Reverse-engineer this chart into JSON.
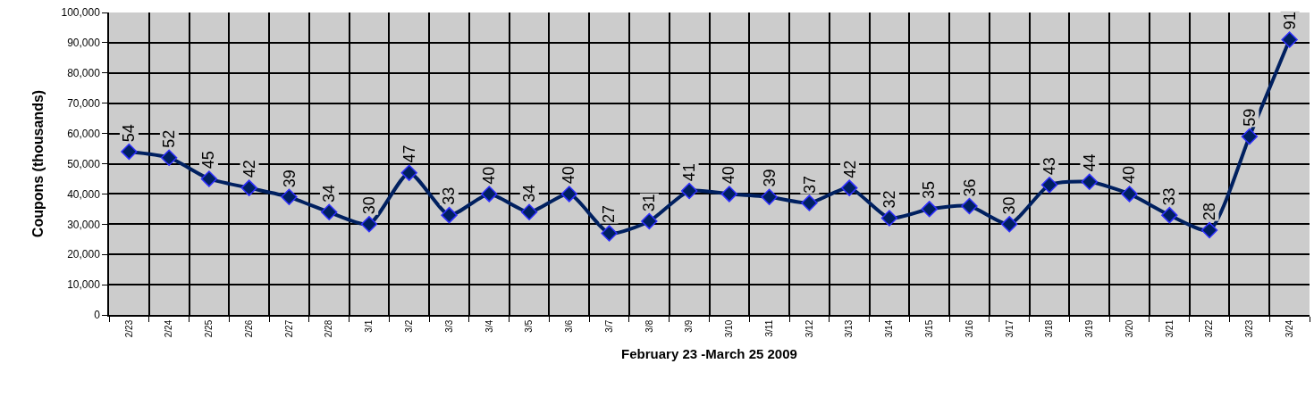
{
  "chart_data": {
    "type": "line",
    "xlabel": "February 23 -March 25 2009",
    "ylabel": "Coupons (thousands)",
    "categories": [
      "2/23",
      "2/24",
      "2/25",
      "2/26",
      "2/27",
      "2/28",
      "3/1",
      "3/2",
      "3/3",
      "3/4",
      "3/5",
      "3/6",
      "3/7",
      "3/8",
      "3/9",
      "3/10",
      "3/11",
      "3/12",
      "3/13",
      "3/14",
      "3/15",
      "3/16",
      "3/17",
      "3/18",
      "3/19",
      "3/20",
      "3/21",
      "3/22",
      "3/23",
      "3/24"
    ],
    "series": [
      {
        "color": "#002060",
        "values": [
          54000,
          52000,
          45000,
          42000,
          39000,
          34000,
          30000,
          47000,
          33000,
          40000,
          34000,
          40000,
          27000,
          31000,
          41000,
          40000,
          39000,
          37000,
          42000,
          32000,
          35000,
          36000,
          30000,
          43000,
          44000,
          40000,
          33000,
          28000,
          59000,
          91000
        ]
      }
    ],
    "annotations": [
      {
        "text": "54",
        "x": "2/23",
        "y": 54000
      },
      {
        "text": "52",
        "x": "2/24",
        "y": 52000
      },
      {
        "text": "45",
        "x": "2/25",
        "y": 45000
      },
      {
        "text": "42",
        "x": "2/26",
        "y": 42000
      },
      {
        "text": "39",
        "x": "2/27",
        "y": 39000
      },
      {
        "text": "34",
        "x": "2/28",
        "y": 34000
      },
      {
        "text": "30",
        "x": "3/1",
        "y": 30000
      },
      {
        "text": "47",
        "x": "3/2",
        "y": 47000
      },
      {
        "text": "33",
        "x": "3/3",
        "y": 33000
      },
      {
        "text": "40",
        "x": "3/4",
        "y": 40000
      },
      {
        "text": "34",
        "x": "3/5",
        "y": 34000
      },
      {
        "text": "40",
        "x": "3/6",
        "y": 40000
      },
      {
        "text": "27",
        "x": "3/7",
        "y": 27000
      },
      {
        "text": "31",
        "x": "3/8",
        "y": 31000
      },
      {
        "text": "41",
        "x": "3/9",
        "y": 41000
      },
      {
        "text": "40",
        "x": "3/10",
        "y": 40000
      },
      {
        "text": "39",
        "x": "3/11",
        "y": 39000
      },
      {
        "text": "37",
        "x": "3/12",
        "y": 37000
      },
      {
        "text": "42",
        "x": "3/13",
        "y": 42000
      },
      {
        "text": "32",
        "x": "3/14",
        "y": 32000
      },
      {
        "text": "35",
        "x": "3/15",
        "y": 35000
      },
      {
        "text": "36",
        "x": "3/16",
        "y": 36000
      },
      {
        "text": "30",
        "x": "3/17",
        "y": 30000
      },
      {
        "text": "43",
        "x": "3/18",
        "y": 43000
      },
      {
        "text": "44",
        "x": "3/19",
        "y": 44000
      },
      {
        "text": "40",
        "x": "3/20",
        "y": 40000
      },
      {
        "text": "33",
        "x": "3/21",
        "y": 33000
      },
      {
        "text": "28",
        "x": "3/22",
        "y": 28000
      },
      {
        "text": "59",
        "x": "3/23",
        "y": 59000
      },
      {
        "text": "91",
        "x": "3/24",
        "y": 91000
      }
    ],
    "ylim": [
      0,
      100000
    ],
    "yticks": [
      {
        "value": 0,
        "label": "0"
      },
      {
        "value": 10000,
        "label": "10,000"
      },
      {
        "value": 20000,
        "label": "20,000"
      },
      {
        "value": 30000,
        "label": "30,000"
      },
      {
        "value": 40000,
        "label": "40,000"
      },
      {
        "value": 50000,
        "label": "50,000"
      },
      {
        "value": 60000,
        "label": "60,000"
      },
      {
        "value": 70000,
        "label": "70,000"
      },
      {
        "value": 80000,
        "label": "80,000"
      },
      {
        "value": 90000,
        "label": "90,000"
      },
      {
        "value": 100000,
        "label": "100,000"
      }
    ],
    "grid": true,
    "marker": "diamond",
    "line_style": "solid"
  }
}
